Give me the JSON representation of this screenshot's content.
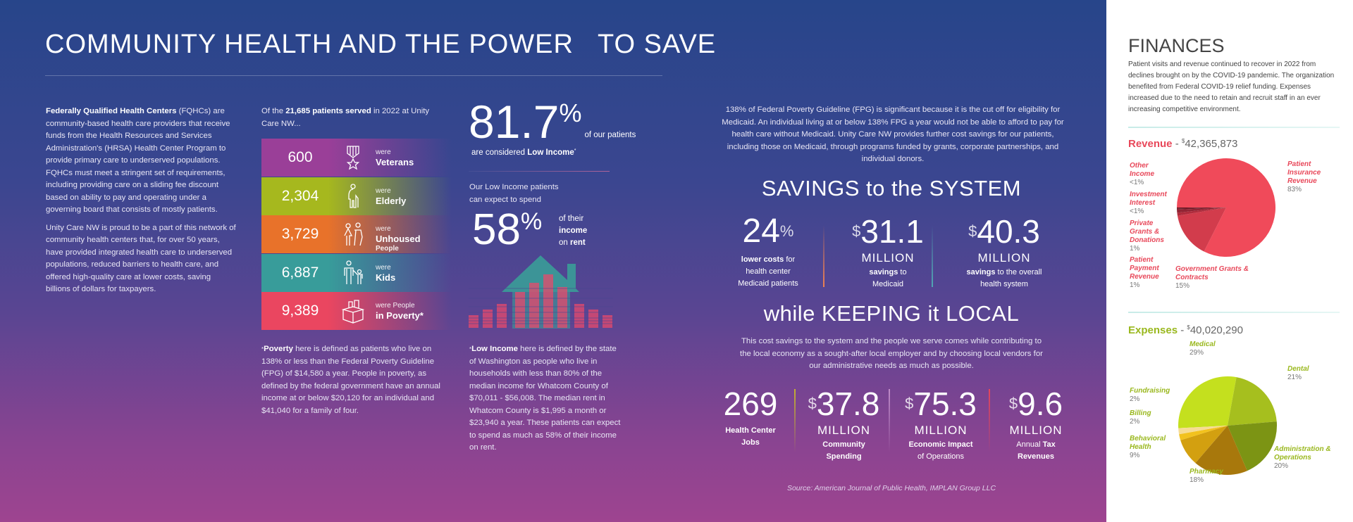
{
  "title": "COMMUNITY HEALTH AND THE POWER   TO SAVE",
  "intro": {
    "p1_bold": "Federally Qualified Health Centers",
    "p1_rest": " (FQHCs) are community-based health care providers that receive funds from the Health Resources and Services Administration's (HRSA) Health Center Program to provide primary care to underserved populations. FQHCs must meet a stringent set of requirements, including providing care on a sliding fee discount based on ability to pay and operating under a governing board that consists of mostly patients.",
    "p2": "Unity Care NW is proud to be a part of this network of community health centers that, for over 50 years, have provided integrated health care to underserved populations, reduced barriers to health care, and offered high-quality care at lower costs, saving billions of dollars for taxpayers."
  },
  "patients": {
    "pre": "Of the ",
    "bold": "21,685 patients served",
    "post": " in 2022 at Unity Care NW...",
    "rows": [
      {
        "value": "600",
        "were": "were",
        "label": "Veterans",
        "sub": "",
        "icon": "medal-icon",
        "color": "#9a3f98"
      },
      {
        "value": "2,304",
        "were": "were",
        "label": "Elderly",
        "sub": "",
        "icon": "elderly-person-icon",
        "color": "#a6b81e"
      },
      {
        "value": "3,729",
        "were": "were",
        "label": "Unhoused",
        "sub": "People",
        "icon": "unhoused-people-icon",
        "color": "#e8722a"
      },
      {
        "value": "6,887",
        "were": "were",
        "label": "Kids",
        "sub": "",
        "icon": "parent-child-icon",
        "color": "#389c9a"
      },
      {
        "value": "9,389",
        "were": "were People",
        "label": "in Poverty*",
        "sub": "",
        "icon": "donation-box-icon",
        "color": "#ea4660"
      }
    ],
    "footnote_bold": "Poverty",
    "footnote": " here is defined as patients who live on 138% or less than the Federal Poverty Guideline (FPG) of $14,580 a year. People in poverty, as defined by the federal government have an annual income at or below $20,120 for an individual and $41,040 for a family of four.",
    "footnote_star": "*"
  },
  "low_income": {
    "pct": "81.7",
    "pct_sign": "%",
    "of": "of our patients",
    "considered": "are considered ",
    "considered_bold": "Low Income",
    "star": "*",
    "spend_intro": "Our Low Income patients can expect to spend",
    "rent_pct": "58",
    "rent_sign": "%",
    "rent_l1": "of their",
    "rent_l2": "income",
    "rent_l3a": "on ",
    "rent_l3b": "rent",
    "footnote_star": "*",
    "footnote_bold": "Low Income",
    "footnote": " here is defined by the state of Washington as people who live in households with less than 80% of the median income for Whatcom County of $70,011 - $56,008. The median rent in Whatcom County is $1,995 a month or $23,940 a year. These patients can expect to spend as much as 58% of their income on rent."
  },
  "fpg_text": "138% of Federal Poverty Guideline (FPG) is significant because it is the cut off for eligibility for Medicaid. An individual living at or below 138% FPG a year would not be able to afford to pay for health care without Medicaid. Unity Care NW provides further cost savings for our patients, including those on Medicaid, through programs funded by grants, corporate partnerships, and individual donors.",
  "savings": {
    "heading": "SAVINGS to the SYSTEM",
    "s1": {
      "n": "24",
      "sup": "%",
      "d_bold": "lower costs",
      "d": " for health center Medicaid patients"
    },
    "s2": {
      "sup": "$",
      "n": "31.1",
      "m": "MILLION",
      "d_bold": "savings",
      "d": " to Medicaid"
    },
    "s3": {
      "sup": "$",
      "n": "40.3",
      "m": "MILLION",
      "d_bold": "savings",
      "d": " to the overall health system"
    }
  },
  "local": {
    "heading": "while KEEPING it LOCAL",
    "text": "This cost savings to the system and the people we serve comes while contributing to the local economy as a sought-after local employer and by choosing local vendors for our administrative needs as much as possible.",
    "s1": {
      "n": "269",
      "d_bold": "Health Center Jobs"
    },
    "s2": {
      "sup": "$",
      "n": "37.8",
      "m": "MILLION",
      "d_bold": "Community Spending"
    },
    "s3": {
      "sup": "$",
      "n": "75.3",
      "m": "MILLION",
      "d_bold": "Economic Impact",
      "d": "of Operations"
    },
    "s4": {
      "sup": "$",
      "n": "9.6",
      "m": "MILLION",
      "d": "Annual ",
      "d_bold": "Tax Revenues"
    },
    "source": "Source: American Journal of Public Health, IMPLAN Group LLC"
  },
  "finances": {
    "heading": "FINANCES",
    "text": "Patient visits and revenue continued to recover in 2022 from declines brought on by the COVID-19 pandemic. The organization benefited from Federal COVID-19 relief funding. Expenses increased due to the need to retain and recruit staff in an ever increasing competitive environment.",
    "revenue": {
      "label": "Revenue",
      "total": "42,365,873",
      "sep": " - ",
      "cur": "$",
      "accent": "#e8485a",
      "slices": [
        {
          "name": "Patient Insurance Revenue",
          "pct": "83%",
          "value": 83,
          "color": "#f04a5a"
        },
        {
          "name": "Government Grants & Contracts",
          "pct": "15%",
          "value": 15,
          "color": "#d23c4c"
        },
        {
          "name": "Patient Payment Revenue",
          "pct": "1%",
          "value": 1,
          "color": "#b02c3c"
        },
        {
          "name": "Private Grants & Donations",
          "pct": "1%",
          "value": 1,
          "color": "#922434"
        },
        {
          "name": "Investment Interest",
          "pct": "<1%",
          "value": 0.4,
          "color": "#7a1c2a"
        },
        {
          "name": "Other Income",
          "pct": "<1%",
          "value": 0.3,
          "color": "#5e1420"
        }
      ]
    },
    "expenses": {
      "label": "Expenses",
      "total": "40,020,290",
      "sep": " - ",
      "cur": "$",
      "accent": "#9ab81e",
      "slices": [
        {
          "name": "Medical",
          "pct": "29%",
          "value": 29,
          "color": "#c4e01e"
        },
        {
          "name": "Dental",
          "pct": "21%",
          "value": 21,
          "color": "#a6bf1e"
        },
        {
          "name": "Administration & Operations",
          "pct": "20%",
          "value": 20,
          "color": "#7c9414"
        },
        {
          "name": "Pharmacy",
          "pct": "18%",
          "value": 18,
          "color": "#a8780c"
        },
        {
          "name": "Behavioral Health",
          "pct": "9%",
          "value": 9,
          "color": "#d3a010"
        },
        {
          "name": "Billing",
          "pct": "2%",
          "value": 2,
          "color": "#f2c21e"
        },
        {
          "name": "Fundraising",
          "pct": "2%",
          "value": 2,
          "color": "#f6dc94"
        }
      ]
    }
  }
}
